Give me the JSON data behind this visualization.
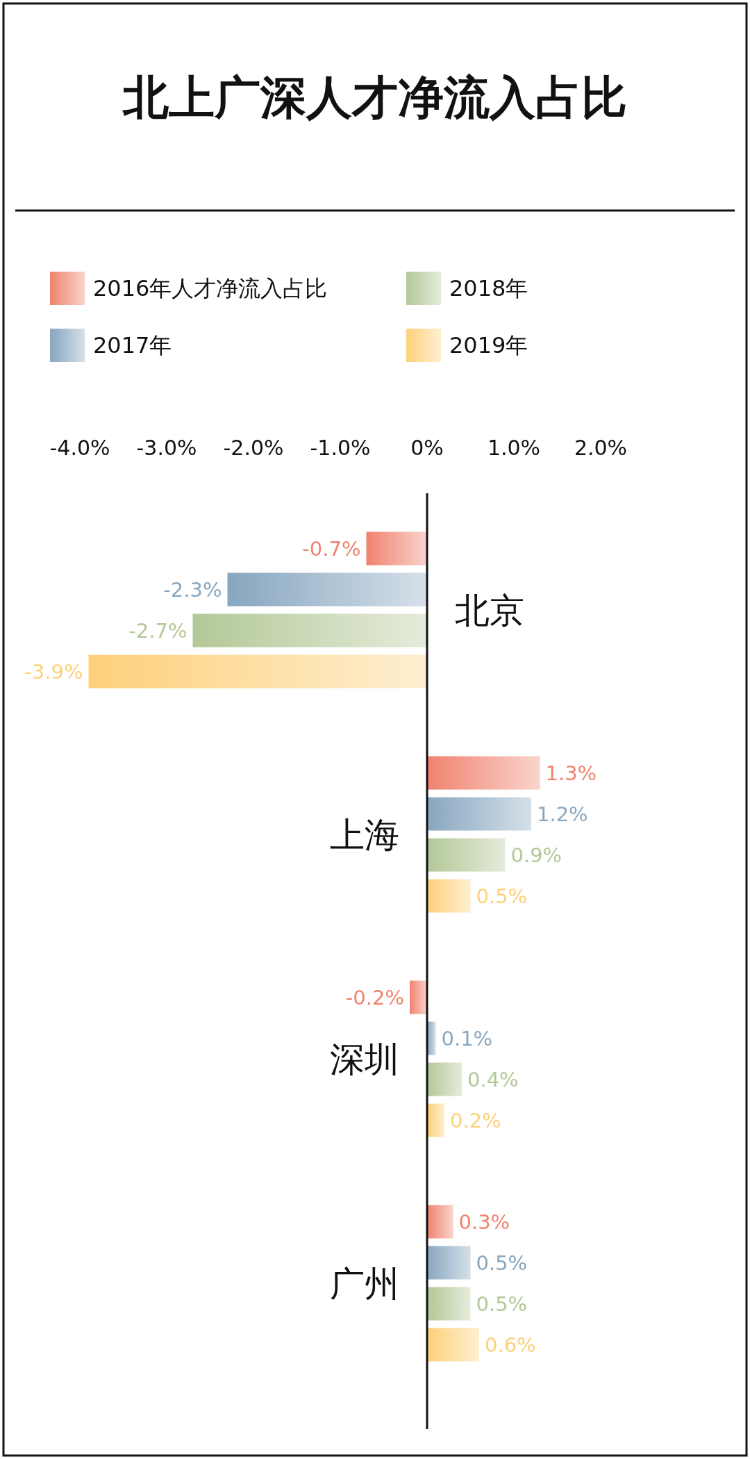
{
  "chart_data": {
    "type": "bar",
    "orientation": "horizontal",
    "title": "北上广深人才净流入占比",
    "categories": [
      "北京",
      "上海",
      "深圳",
      "广州"
    ],
    "series": [
      {
        "name": "2016年人才净流入占比",
        "color": "#f0826e",
        "values": [
          -0.7,
          1.3,
          -0.2,
          0.3
        ],
        "value_labels": [
          "-0.7%",
          "1.3%",
          "-0.2%",
          "0.3%"
        ]
      },
      {
        "name": "2017年",
        "color": "#87a6bf",
        "values": [
          -2.3,
          1.2,
          0.1,
          0.5
        ],
        "value_labels": [
          "-2.3%",
          "1.2%",
          "0.1%",
          "0.5%"
        ]
      },
      {
        "name": "2018年",
        "color": "#b3c897",
        "values": [
          -2.7,
          0.9,
          0.4,
          0.5
        ],
        "value_labels": [
          "-2.7%",
          "0.9%",
          "0.4%",
          "0.5%"
        ]
      },
      {
        "name": "2019年",
        "color": "#fdd07a",
        "values": [
          -3.9,
          0.5,
          0.2,
          0.6
        ],
        "value_labels": [
          "-3.9%",
          "0.5%",
          "0.2%",
          "0.6%"
        ]
      }
    ],
    "xlim": [
      -4,
      2
    ],
    "xticks": [
      {
        "value": -4,
        "label": "-4.0%"
      },
      {
        "value": -3,
        "label": "-3.0%"
      },
      {
        "value": -2,
        "label": "-2.0%"
      },
      {
        "value": -1,
        "label": "-1.0%"
      },
      {
        "value": 0,
        "label": "0%"
      },
      {
        "value": 1,
        "label": "1.0%"
      },
      {
        "value": 2,
        "label": "2.0%"
      }
    ],
    "grid": false,
    "legend": "top"
  }
}
